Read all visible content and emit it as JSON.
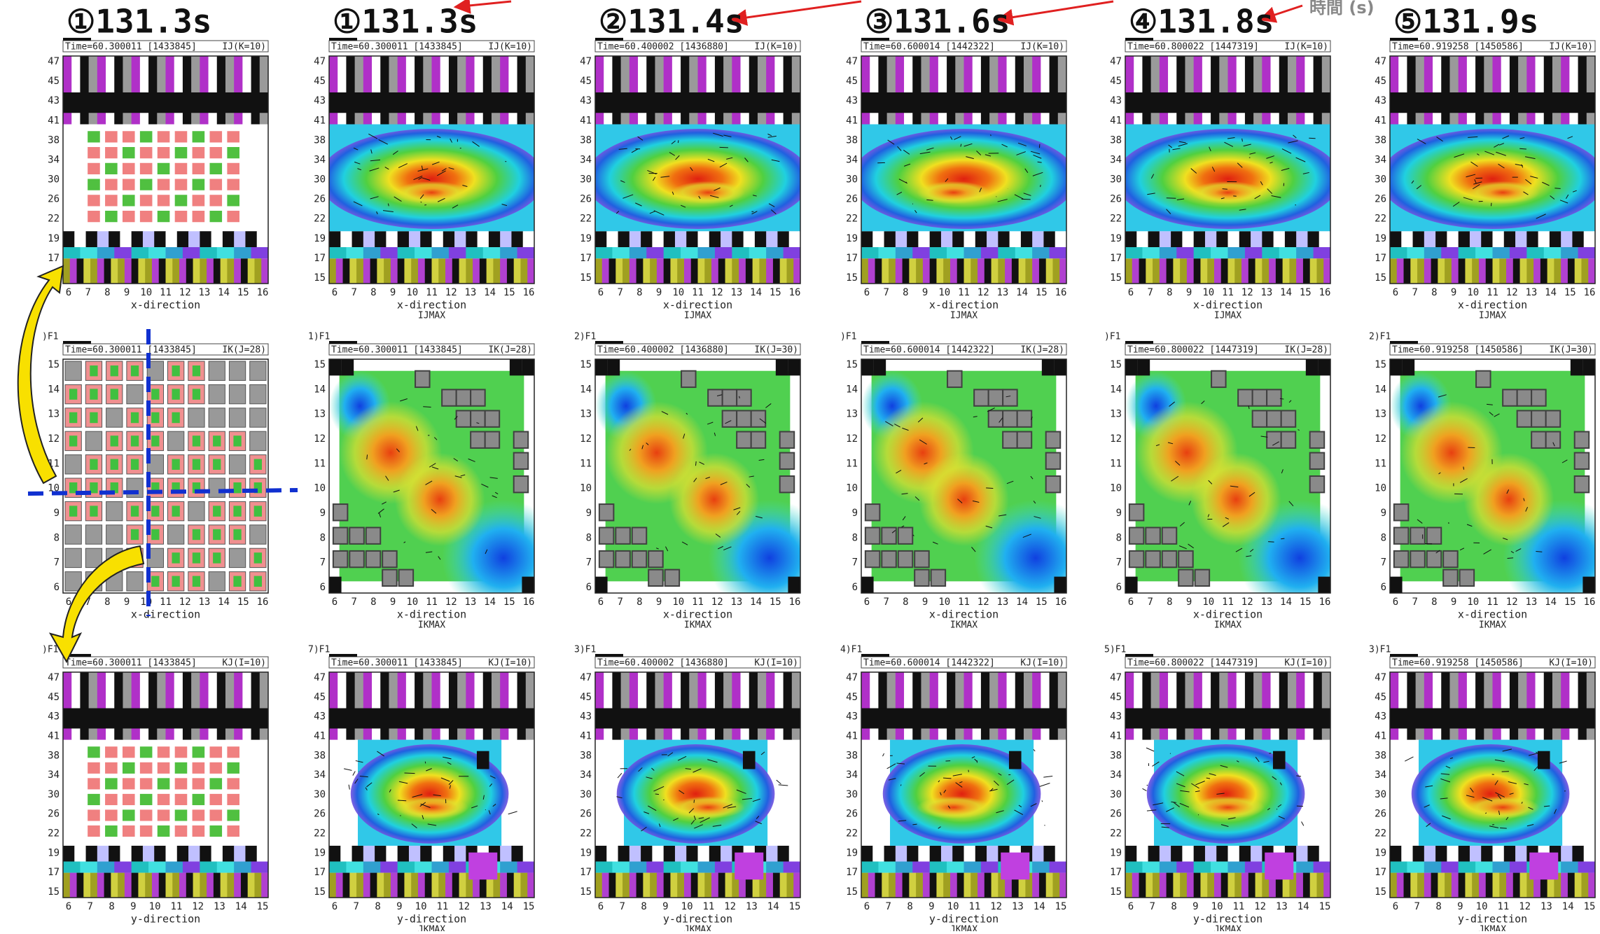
{
  "time_axis_label": "時間 (s)",
  "ticks": {
    "vertical_47": [
      47,
      45,
      43,
      41,
      38,
      34,
      30,
      26,
      22,
      19,
      17,
      15
    ],
    "vertical_15": [
      15,
      14,
      13,
      12,
      11,
      10,
      9,
      8,
      7,
      6
    ],
    "horizontal_16": [
      6,
      7,
      8,
      9,
      10,
      11,
      12,
      13,
      14,
      15,
      16
    ],
    "horizontal_15": [
      6,
      7,
      8,
      9,
      10,
      11,
      12,
      13,
      14,
      15
    ]
  },
  "columns": [
    {
      "header": "①131.3s",
      "time_stamp": "Time=60.300011 [1433845]",
      "panels": [
        {
          "tag": "IJ(K=10)",
          "xlabel": "x-direction"
        },
        {
          "label": ")F1",
          "tag": "IK(J=28)",
          "xlabel": "x-direction"
        },
        {
          "label": ")F1",
          "tag": "KJ(I=10)",
          "xlabel": "y-direction"
        }
      ]
    },
    {
      "header": "①131.3s",
      "time_stamp": "Time=60.300011 [1433845]",
      "panels": [
        {
          "tag": "IJ(K=10)",
          "xlabel": "x-direction",
          "sublabel": "IJMAX"
        },
        {
          "label": "1)F1",
          "tag": "IK(J=28)",
          "xlabel": "x-direction",
          "sublabel": "IKMAX"
        },
        {
          "label": "7)F1",
          "tag": "KJ(I=10)",
          "xlabel": "y-direction",
          "sublabel": "JKMAX"
        }
      ]
    },
    {
      "header": "②131.4s",
      "time_stamp": "Time=60.400002 [1436880]",
      "panels": [
        {
          "tag": "IJ(K=10)",
          "xlabel": "x-direction",
          "sublabel": "IJMAX"
        },
        {
          "label": "2)F1",
          "tag": "IK(J=30)",
          "xlabel": "x-direction",
          "sublabel": "IKMAX"
        },
        {
          "label": "3)F1",
          "tag": "KJ(I=10)",
          "xlabel": "y-direction",
          "sublabel": "JKMAX"
        }
      ]
    },
    {
      "header": "③131.6s",
      "time_stamp": "Time=60.600014 [1442322]",
      "panels": [
        {
          "tag": "IJ(K=10)",
          "xlabel": "x-direction",
          "sublabel": "IJMAX"
        },
        {
          "label": ")F1",
          "tag": "IK(J=28)",
          "xlabel": "x-direction",
          "sublabel": "IKMAX"
        },
        {
          "label": "4)F1",
          "tag": "KJ(I=10)",
          "xlabel": "y-direction",
          "sublabel": "JKMAX"
        }
      ]
    },
    {
      "header": "④131.8s",
      "time_stamp": "Time=60.800022 [1447319]",
      "panels": [
        {
          "tag": "IJ(K=10)",
          "xlabel": "x-direction",
          "sublabel": "IJMAX"
        },
        {
          "label": ")F1",
          "tag": "IK(J=28)",
          "xlabel": "x-direction",
          "sublabel": "IKMAX"
        },
        {
          "label": "5)F1",
          "tag": "KJ(I=10)",
          "xlabel": "y-direction",
          "sublabel": "JKMAX"
        }
      ]
    },
    {
      "header": "⑤131.9s",
      "time_stamp": "Time=60.919258 [1450586]",
      "panels": [
        {
          "tag": "IJ(K=10)",
          "xlabel": "x-direction",
          "sublabel": "IJMAX"
        },
        {
          "label": "2)F1",
          "tag": "IK(J=30)",
          "xlabel": "x-direction",
          "sublabel": "IKMAX"
        },
        {
          "label": "3)F1",
          "tag": "KJ(I=10)",
          "xlabel": "y-direction",
          "sublabel": "JKMAX"
        }
      ]
    }
  ]
}
